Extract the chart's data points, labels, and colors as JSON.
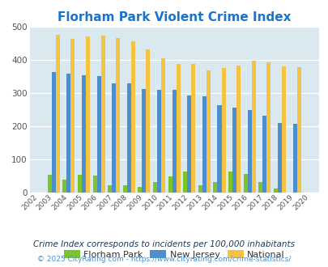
{
  "title": "Florham Park Violent Crime Index",
  "title_color": "#1874cd",
  "years": [
    "2002",
    "2003",
    "2004",
    "2005",
    "2006",
    "2007",
    "2008",
    "2009",
    "2010",
    "2011",
    "2012",
    "2013",
    "2014",
    "2015",
    "2016",
    "2017",
    "2018",
    "2019",
    "2020"
  ],
  "florham_park": [
    0,
    53,
    37,
    52,
    50,
    20,
    20,
    17,
    30,
    47,
    62,
    20,
    30,
    62,
    55,
    30,
    12,
    0,
    0
  ],
  "new_jersey": [
    0,
    363,
    358,
    353,
    350,
    330,
    330,
    312,
    309,
    310,
    293,
    289,
    262,
    256,
    248,
    231,
    210,
    207,
    0
  ],
  "national": [
    0,
    476,
    464,
    470,
    474,
    467,
    455,
    432,
    405,
    387,
    387,
    368,
    376,
    383,
    397,
    393,
    381,
    379,
    0
  ],
  "bar_colors": {
    "florham_park": "#7dc42a",
    "new_jersey": "#4d8fcc",
    "national": "#f5c242"
  },
  "ylim": [
    0,
    500
  ],
  "yticks": [
    0,
    100,
    200,
    300,
    400,
    500
  ],
  "bg_color": "#dae8f0",
  "legend_labels": [
    "Florham Park",
    "New Jersey",
    "National"
  ],
  "footnote1": "Crime Index corresponds to incidents per 100,000 inhabitants",
  "footnote2": "© 2025 CityRating.com - https://www.cityrating.com/crime-statistics/",
  "footnote1_color": "#1a3a5c",
  "footnote2_color": "#4d8fcc",
  "title_fontsize": 11,
  "legend_fontsize": 8,
  "footnote1_fontsize": 7.5,
  "footnote2_fontsize": 6.5
}
